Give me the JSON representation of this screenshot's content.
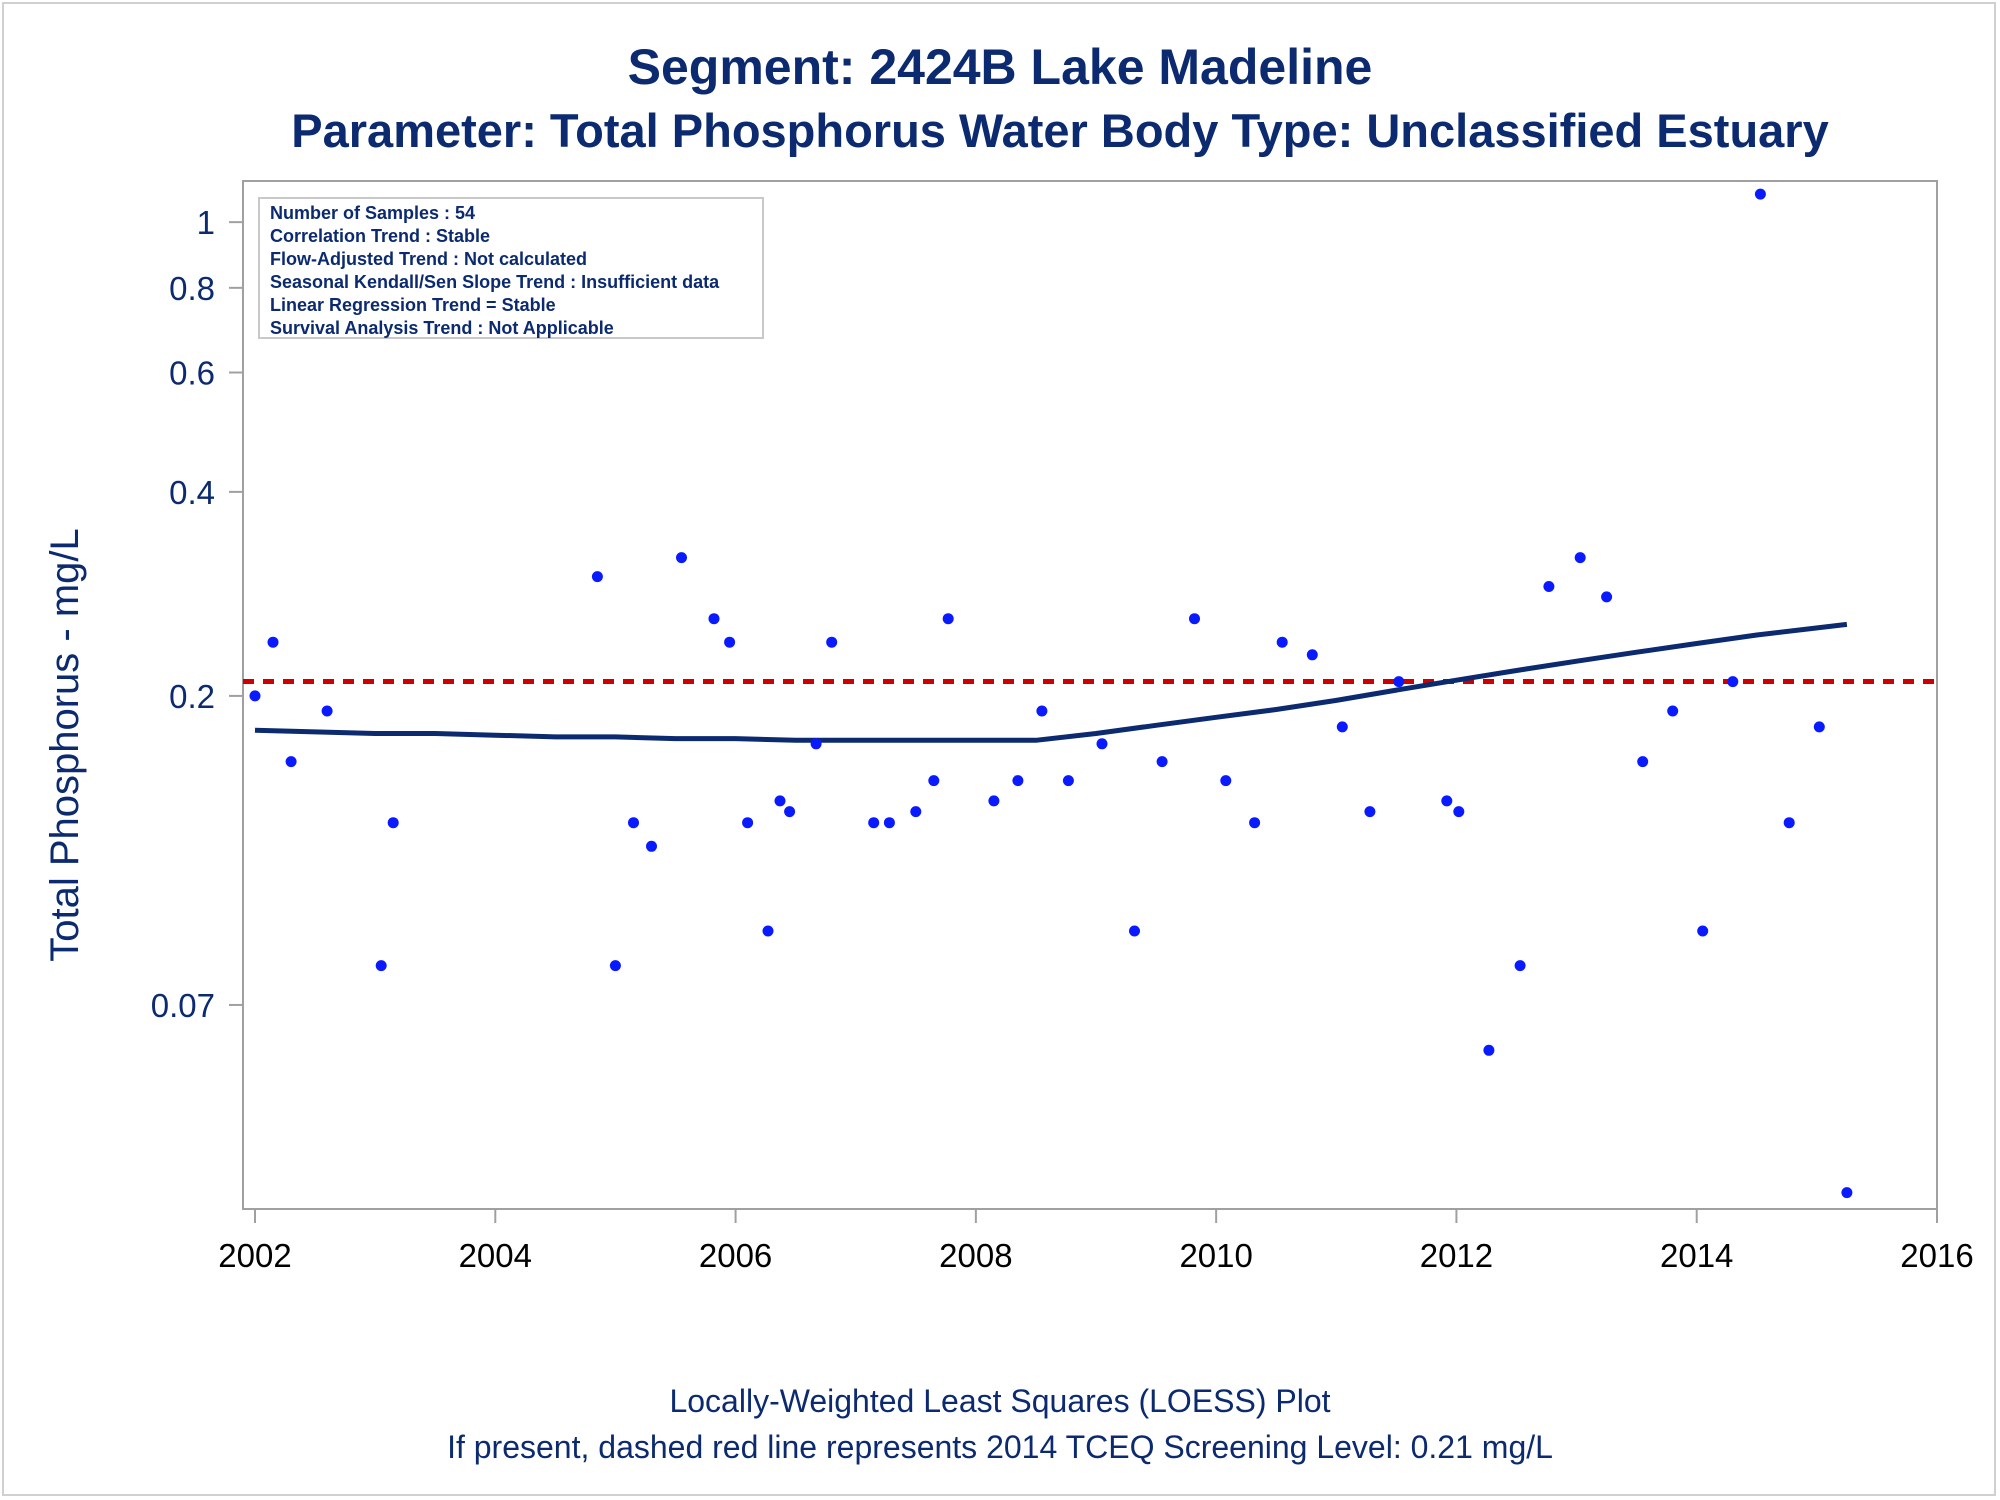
{
  "header": {
    "title": "Segment: 2424B  Lake Madeline",
    "subtitle": "Parameter: Total Phosphorus   Water Body Type: Unclassified Estuary"
  },
  "footer": {
    "line1": "Locally-Weighted Least Squares (LOESS) Plot",
    "line2": "If present, dashed red line represents 2014 TCEQ Screening Level: 0.21 mg/L"
  },
  "stats_box": [
    "Number of Samples : 54",
    "Correlation Trend : Stable",
    "Flow-Adjusted Trend : Not calculated",
    "Seasonal Kendall/Sen Slope Trend : Insufficient data",
    "Linear Regression Trend = Stable",
    "Survival Analysis Trend : Not Applicable"
  ],
  "colors": {
    "text": "#0b2a6f",
    "points": "#0a1aff",
    "loess": "#0b2a6f",
    "screening_line": "#cc0000",
    "axis": "#a0a0a0"
  },
  "chart_data": {
    "type": "scatter",
    "title": "Segment: 2424B  Lake Madeline",
    "ylabel": "Total Phosphorus - mg/L",
    "xlabel": "",
    "y_scale": "log",
    "xlim": [
      2001.9,
      2016.0
    ],
    "ylim": [
      0.035,
      1.15
    ],
    "x_ticks": [
      2002,
      2004,
      2006,
      2008,
      2010,
      2012,
      2014,
      2016
    ],
    "y_ticks": [
      0.07,
      0.2,
      0.4,
      0.6,
      0.8,
      1
    ],
    "y_tick_labels": [
      "0.07",
      "0.2",
      "0.4",
      "0.6",
      "0.8",
      "1"
    ],
    "grid": false,
    "screening_level": 0.21,
    "points": [
      [
        2002.0,
        0.2
      ],
      [
        2002.15,
        0.24
      ],
      [
        2002.3,
        0.16
      ],
      [
        2002.6,
        0.19
      ],
      [
        2003.05,
        0.08
      ],
      [
        2003.15,
        0.13
      ],
      [
        2004.85,
        0.3
      ],
      [
        2005.0,
        0.08
      ],
      [
        2005.15,
        0.13
      ],
      [
        2005.3,
        0.12
      ],
      [
        2005.55,
        0.32
      ],
      [
        2005.82,
        0.26
      ],
      [
        2005.95,
        0.24
      ],
      [
        2006.1,
        0.13
      ],
      [
        2006.27,
        0.09
      ],
      [
        2006.37,
        0.14
      ],
      [
        2006.45,
        0.135
      ],
      [
        2006.67,
        0.17
      ],
      [
        2006.8,
        0.24
      ],
      [
        2007.15,
        0.13
      ],
      [
        2007.28,
        0.13
      ],
      [
        2007.5,
        0.135
      ],
      [
        2007.65,
        0.15
      ],
      [
        2007.77,
        0.26
      ],
      [
        2008.15,
        0.14
      ],
      [
        2008.35,
        0.15
      ],
      [
        2008.55,
        0.19
      ],
      [
        2008.77,
        0.15
      ],
      [
        2009.05,
        0.17
      ],
      [
        2009.32,
        0.09
      ],
      [
        2009.55,
        0.16
      ],
      [
        2009.82,
        0.26
      ],
      [
        2010.08,
        0.15
      ],
      [
        2010.32,
        0.13
      ],
      [
        2010.55,
        0.24
      ],
      [
        2010.8,
        0.23
      ],
      [
        2011.05,
        0.18
      ],
      [
        2011.28,
        0.135
      ],
      [
        2011.52,
        0.21
      ],
      [
        2011.92,
        0.14
      ],
      [
        2012.02,
        0.135
      ],
      [
        2012.27,
        0.06
      ],
      [
        2012.53,
        0.08
      ],
      [
        2012.77,
        0.29
      ],
      [
        2013.03,
        0.32
      ],
      [
        2013.25,
        0.28
      ],
      [
        2013.55,
        0.16
      ],
      [
        2013.8,
        0.19
      ],
      [
        2014.05,
        0.09
      ],
      [
        2014.3,
        0.21
      ],
      [
        2014.53,
        1.1
      ],
      [
        2014.77,
        0.13
      ],
      [
        2015.02,
        0.18
      ],
      [
        2015.25,
        0.037
      ]
    ],
    "loess": [
      [
        2002.0,
        0.178
      ],
      [
        2002.5,
        0.177
      ],
      [
        2003.0,
        0.176
      ],
      [
        2003.5,
        0.176
      ],
      [
        2004.0,
        0.175
      ],
      [
        2004.5,
        0.174
      ],
      [
        2005.0,
        0.174
      ],
      [
        2005.5,
        0.173
      ],
      [
        2006.0,
        0.173
      ],
      [
        2006.5,
        0.172
      ],
      [
        2007.0,
        0.172
      ],
      [
        2007.5,
        0.172
      ],
      [
        2008.0,
        0.172
      ],
      [
        2008.5,
        0.172
      ],
      [
        2009.0,
        0.176
      ],
      [
        2009.5,
        0.181
      ],
      [
        2010.0,
        0.186
      ],
      [
        2010.5,
        0.191
      ],
      [
        2011.0,
        0.197
      ],
      [
        2011.5,
        0.204
      ],
      [
        2012.0,
        0.211
      ],
      [
        2012.5,
        0.218
      ],
      [
        2013.0,
        0.225
      ],
      [
        2013.5,
        0.232
      ],
      [
        2014.0,
        0.239
      ],
      [
        2014.5,
        0.246
      ],
      [
        2015.25,
        0.255
      ]
    ]
  }
}
